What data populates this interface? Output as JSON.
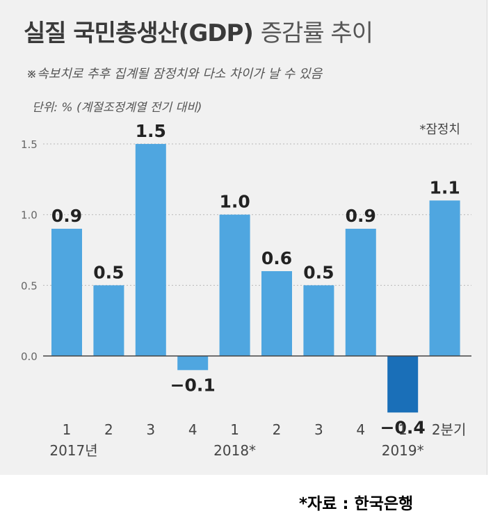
{
  "header": {
    "title_main": "실질 국민총생산(GDP)",
    "title_sub": "증감률 추이",
    "note": "※속보치로 추후 집계될 잠정치와 다소 차이가 날 수 있음",
    "unit": "단위: % (계절조정계열 전기 대비)",
    "prelim_label": "*잠정치"
  },
  "chart_data": {
    "type": "bar",
    "categories": [
      "1",
      "2",
      "3",
      "4",
      "1",
      "2",
      "3",
      "4",
      "1",
      "2분기"
    ],
    "year_labels": [
      "2017년",
      "2018*",
      "2019*"
    ],
    "values": [
      0.9,
      0.5,
      1.5,
      -0.1,
      1.0,
      0.6,
      0.5,
      0.9,
      -0.4,
      1.1
    ],
    "value_labels": [
      "0.9",
      "0.5",
      "1.5",
      "−0.1",
      "1.0",
      "0.6",
      "0.5",
      "0.9",
      "−0.4",
      "1.1"
    ],
    "y_ticks": [
      0.0,
      0.5,
      1.0,
      1.5
    ],
    "y_tick_labels": [
      "0.0",
      "0.5",
      "1.0",
      "1.5"
    ],
    "ylim": [
      -0.4,
      1.5
    ],
    "grid": true,
    "bar_color": "#4fa6e0",
    "highlight_color": "#1a6fb8",
    "highlight_index": 8
  },
  "footer": {
    "source": "*자료 : 한국은행"
  }
}
